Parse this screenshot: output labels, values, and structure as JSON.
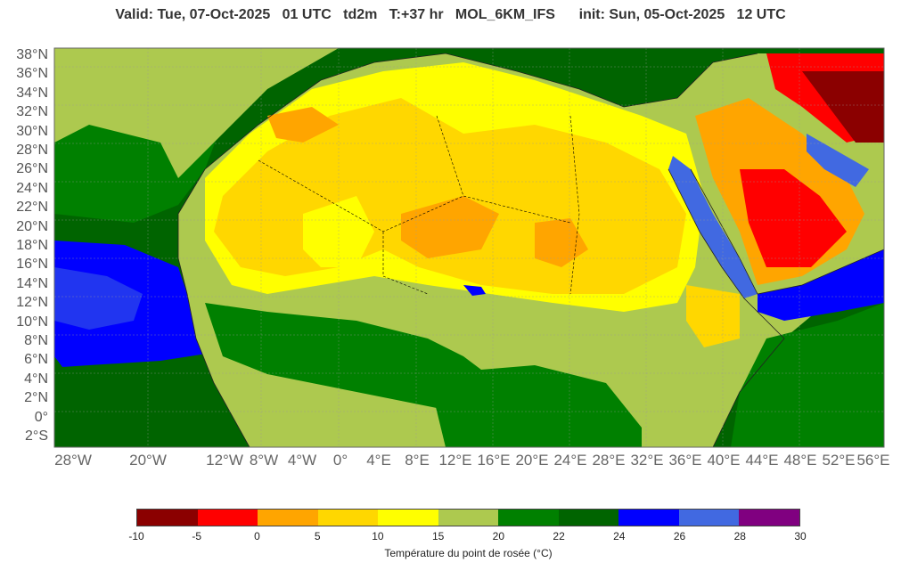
{
  "title": "Valid: Tue, 07-Oct-2025   01 UTC   td2m   T:+37 hr   MOL_6KM_IFS      init: Sun, 05-Oct-2025   12 UTC",
  "lat_labels": [
    "38°N",
    "36°N",
    "34°N",
    "32°N",
    "30°N",
    "28°N",
    "26°N",
    "24°N",
    "22°N",
    "20°N",
    "18°N",
    "16°N",
    "14°N",
    "12°N",
    "10°N",
    "8°N",
    "6°N",
    "4°N",
    "2°N",
    "0°",
    "2°S"
  ],
  "lon_labels": [
    "28°W",
    "20°W",
    "12°W",
    "8°W",
    "4°W",
    "0°",
    "4°E",
    "8°E",
    "12°E",
    "16°E",
    "20°E",
    "24°E",
    "28°E",
    "32°E",
    "36°E",
    "40°E",
    "44°E",
    "48°E",
    "52°E",
    "56°E"
  ],
  "colorbar": {
    "ticks": [
      "-10",
      "-5",
      "0",
      "5",
      "10",
      "15",
      "20",
      "22",
      "24",
      "26",
      "28",
      "30"
    ],
    "colors": [
      "#8b0000",
      "#ff0000",
      "#ffa500",
      "#ffd700",
      "#ffff00",
      "#adc94f",
      "#008000",
      "#006400",
      "#0000ff",
      "#4169e1",
      "#800080"
    ],
    "title": "Température du point de rosée (°C)"
  }
}
